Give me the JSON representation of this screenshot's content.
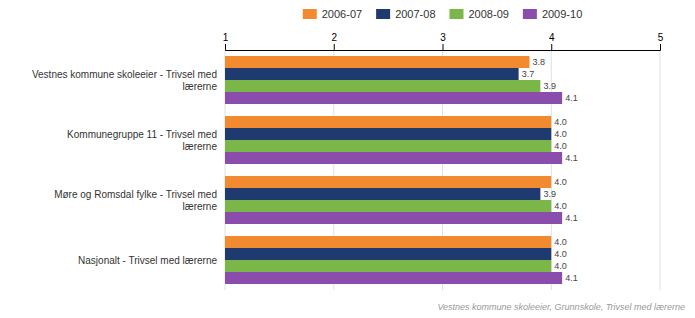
{
  "chart_data": {
    "type": "bar",
    "orientation": "horizontal",
    "categories": [
      "Vestnes kommune skoleeier - Trivsel med\nlærerne",
      "Kommunegruppe 11 - Trivsel med\nlærerne",
      "Møre og Romsdal fylke - Trivsel med\nlærerne",
      "Nasjonalt - Trivsel med lærerne"
    ],
    "series": [
      {
        "name": "2006-07",
        "color": "#F28A30",
        "values": [
          3.8,
          4.0,
          4.0,
          4.0
        ],
        "value_labels": [
          "3.8",
          "4.0",
          "4.0",
          "4.0"
        ]
      },
      {
        "name": "2007-08",
        "color": "#1F3A6E",
        "values": [
          3.7,
          4.0,
          3.9,
          4.0
        ],
        "value_labels": [
          "3.7",
          "4.0",
          "3.9",
          "4.0"
        ]
      },
      {
        "name": "2008-09",
        "color": "#7AB648",
        "values": [
          3.9,
          4.0,
          4.0,
          4.0
        ],
        "value_labels": [
          "3.9",
          "4.0",
          "4.0",
          "4.0"
        ]
      },
      {
        "name": "2009-10",
        "color": "#8B4DAB",
        "values": [
          4.1,
          4.1,
          4.1,
          4.1
        ],
        "value_labels": [
          "4.1",
          "4.1",
          "4.1",
          "4.1"
        ]
      }
    ],
    "xlim": [
      1,
      5
    ],
    "xticks": [
      1,
      2,
      3,
      4,
      5
    ],
    "grid": true,
    "legend": "top",
    "data_labels": true,
    "annotations": [
      "Vestnes kommune skoleeier, Grunnskole, Trivsel med lærerne"
    ]
  }
}
